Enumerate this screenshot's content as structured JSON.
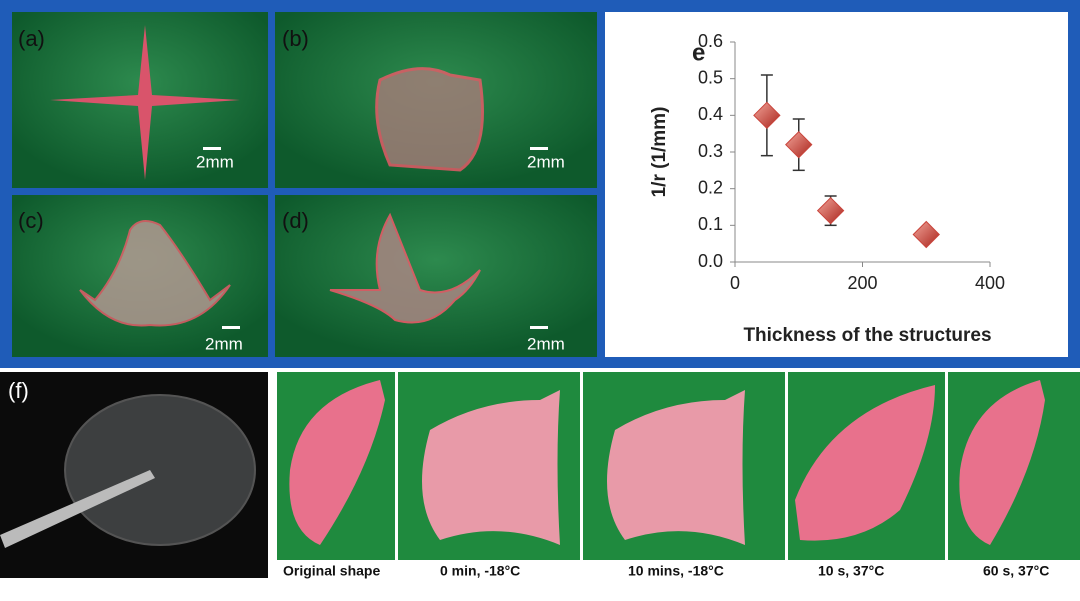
{
  "panels": {
    "a": "(a)",
    "b": "(b)",
    "c": "(c)",
    "d": "(d)",
    "f": "(f)"
  },
  "scale_bars": [
    "2mm",
    "2mm",
    "2mm",
    "2mm"
  ],
  "captions": [
    "Original shape",
    "0 min, -18°C",
    "10 mins, -18°C",
    "10 s, 37°C",
    "60 s, 37°C"
  ],
  "chart_data": {
    "type": "scatter",
    "annotation": "e",
    "xlabel": "Thickness of the structures",
    "ylabel": "1/r (1/mm)",
    "x": [
      50,
      100,
      150,
      300
    ],
    "values": [
      0.4,
      0.32,
      0.14,
      0.075
    ],
    "errors": [
      0.11,
      0.07,
      0.04,
      0.01
    ],
    "color": "#c9433a",
    "xlim": [
      0,
      400
    ],
    "xticks": [
      0,
      200,
      400
    ],
    "ylim": [
      0,
      0.6
    ],
    "yticks": [
      {
        "value": 0,
        "label": "0.0"
      },
      0.1,
      0.2,
      0.3,
      0.4,
      0.5,
      0.6
    ]
  }
}
